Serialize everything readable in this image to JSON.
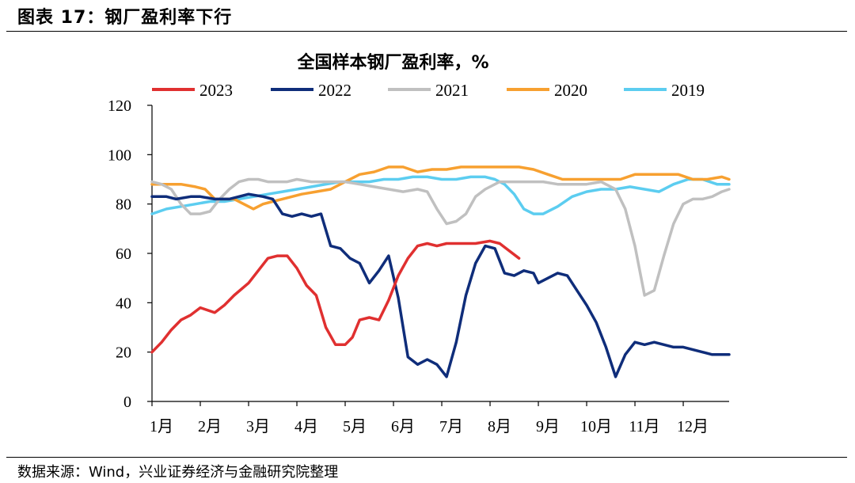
{
  "figure_label": "图表 17：钢厂盈利率下行",
  "source_note": "数据来源：Wind，兴业证券经济与金融研究院整理",
  "chart_data": {
    "type": "line",
    "title": "全国样本钢厂盈利率，%",
    "xlabel": "",
    "ylabel": "",
    "x_ticks": [
      "1月",
      "2月",
      "3月",
      "4月",
      "5月",
      "6月",
      "7月",
      "8月",
      "9月",
      "10月",
      "11月",
      "12月"
    ],
    "xlim": [
      1,
      12.95
    ],
    "ylim": [
      0,
      120
    ],
    "y_ticks": [
      0,
      20,
      40,
      60,
      80,
      100,
      120
    ],
    "grid": false,
    "legend_position": "top",
    "series": [
      {
        "name": "2023",
        "color": "#e03030",
        "x": [
          1.0,
          1.2,
          1.4,
          1.6,
          1.8,
          2.0,
          2.3,
          2.5,
          2.7,
          3.0,
          3.2,
          3.4,
          3.6,
          3.8,
          4.0,
          4.2,
          4.4,
          4.6,
          4.8,
          5.0,
          5.15,
          5.3,
          5.5,
          5.7,
          5.9,
          6.1,
          6.3,
          6.5,
          6.7,
          6.9,
          7.1,
          7.4,
          7.7,
          8.0,
          8.2,
          8.4,
          8.6
        ],
        "y": [
          20,
          24,
          29,
          33,
          35,
          38,
          36,
          39,
          43,
          48,
          53,
          58,
          59,
          59,
          54,
          47,
          43,
          30,
          23,
          23,
          26,
          33,
          34,
          33,
          41,
          51,
          58,
          63,
          64,
          63,
          64,
          64,
          64,
          65,
          64,
          61,
          58
        ]
      },
      {
        "name": "2022",
        "color": "#0f2d7a",
        "x": [
          1.0,
          1.3,
          1.5,
          1.8,
          2.0,
          2.3,
          2.6,
          3.0,
          3.3,
          3.5,
          3.7,
          3.9,
          4.1,
          4.3,
          4.5,
          4.7,
          4.9,
          5.1,
          5.3,
          5.5,
          5.7,
          5.9,
          6.1,
          6.3,
          6.5,
          6.7,
          6.9,
          7.1,
          7.3,
          7.5,
          7.7,
          7.9,
          8.1,
          8.3,
          8.5,
          8.7,
          8.9,
          9.0,
          9.2,
          9.4,
          9.6,
          9.8,
          10.0,
          10.2,
          10.4,
          10.6,
          10.8,
          11.0,
          11.2,
          11.4,
          11.6,
          11.8,
          12.0,
          12.2,
          12.4,
          12.6,
          12.8,
          12.95
        ],
        "y": [
          83,
          83,
          82,
          83,
          83,
          82,
          82,
          84,
          83,
          82,
          76,
          75,
          76,
          75,
          76,
          63,
          62,
          58,
          56,
          48,
          53,
          59,
          42,
          18,
          15,
          17,
          15,
          10,
          24,
          43,
          56,
          63,
          62,
          52,
          51,
          53,
          52,
          48,
          50,
          52,
          51,
          45,
          39,
          32,
          22,
          10,
          19,
          24,
          23,
          24,
          23,
          22,
          22,
          21,
          20,
          19,
          19,
          19
        ]
      },
      {
        "name": "2021",
        "color": "#c0c0c0",
        "x": [
          1.0,
          1.2,
          1.4,
          1.6,
          1.8,
          2.0,
          2.2,
          2.4,
          2.6,
          2.8,
          3.0,
          3.2,
          3.4,
          3.6,
          3.8,
          4.0,
          4.3,
          4.6,
          5.0,
          5.3,
          5.6,
          5.9,
          6.2,
          6.5,
          6.7,
          6.9,
          7.1,
          7.3,
          7.5,
          7.7,
          7.9,
          8.2,
          8.5,
          8.8,
          9.1,
          9.4,
          9.7,
          10.0,
          10.3,
          10.6,
          10.8,
          11.0,
          11.2,
          11.4,
          11.6,
          11.8,
          12.0,
          12.2,
          12.4,
          12.6,
          12.8,
          12.95
        ],
        "y": [
          89,
          88,
          86,
          80,
          76,
          76,
          77,
          82,
          86,
          89,
          90,
          90,
          89,
          89,
          89,
          90,
          89,
          89,
          89,
          88,
          87,
          86,
          85,
          86,
          85,
          78,
          72,
          73,
          76,
          83,
          86,
          89,
          89,
          89,
          89,
          88,
          88,
          88,
          89,
          86,
          78,
          63,
          43,
          45,
          59,
          72,
          80,
          82,
          82,
          83,
          85,
          86
        ]
      },
      {
        "name": "2020",
        "color": "#f7a030",
        "x": [
          1.0,
          1.3,
          1.6,
          1.9,
          2.1,
          2.3,
          2.5,
          2.7,
          2.9,
          3.1,
          3.3,
          3.5,
          3.7,
          3.9,
          4.1,
          4.4,
          4.7,
          5.0,
          5.3,
          5.6,
          5.9,
          6.2,
          6.5,
          6.8,
          7.1,
          7.4,
          7.7,
          8.0,
          8.3,
          8.6,
          8.9,
          9.2,
          9.5,
          9.8,
          10.1,
          10.4,
          10.7,
          11.0,
          11.3,
          11.6,
          11.9,
          12.2,
          12.5,
          12.8,
          12.95
        ],
        "y": [
          88,
          88,
          88,
          87,
          86,
          82,
          82,
          82,
          80,
          78,
          80,
          81,
          82,
          83,
          84,
          85,
          86,
          89,
          92,
          93,
          95,
          95,
          93,
          94,
          94,
          95,
          95,
          95,
          95,
          95,
          94,
          92,
          90,
          90,
          90,
          90,
          90,
          92,
          92,
          92,
          92,
          90,
          90,
          91,
          90
        ]
      },
      {
        "name": "2019",
        "color": "#5ccdf0",
        "x": [
          1.0,
          1.3,
          1.6,
          1.9,
          2.2,
          2.5,
          2.8,
          3.1,
          3.4,
          3.7,
          4.0,
          4.3,
          4.6,
          4.9,
          5.2,
          5.5,
          5.8,
          6.1,
          6.4,
          6.7,
          7.0,
          7.3,
          7.6,
          7.9,
          8.1,
          8.3,
          8.5,
          8.7,
          8.9,
          9.1,
          9.4,
          9.7,
          10.0,
          10.3,
          10.6,
          10.9,
          11.2,
          11.5,
          11.8,
          12.1,
          12.4,
          12.7,
          12.95
        ],
        "y": [
          76,
          78,
          79,
          80,
          81,
          81,
          82,
          83,
          84,
          85,
          86,
          87,
          88,
          89,
          89,
          89,
          90,
          90,
          91,
          91,
          90,
          90,
          91,
          91,
          90,
          88,
          84,
          78,
          76,
          76,
          79,
          83,
          85,
          86,
          86,
          87,
          86,
          85,
          88,
          90,
          90,
          88,
          88
        ]
      }
    ]
  }
}
